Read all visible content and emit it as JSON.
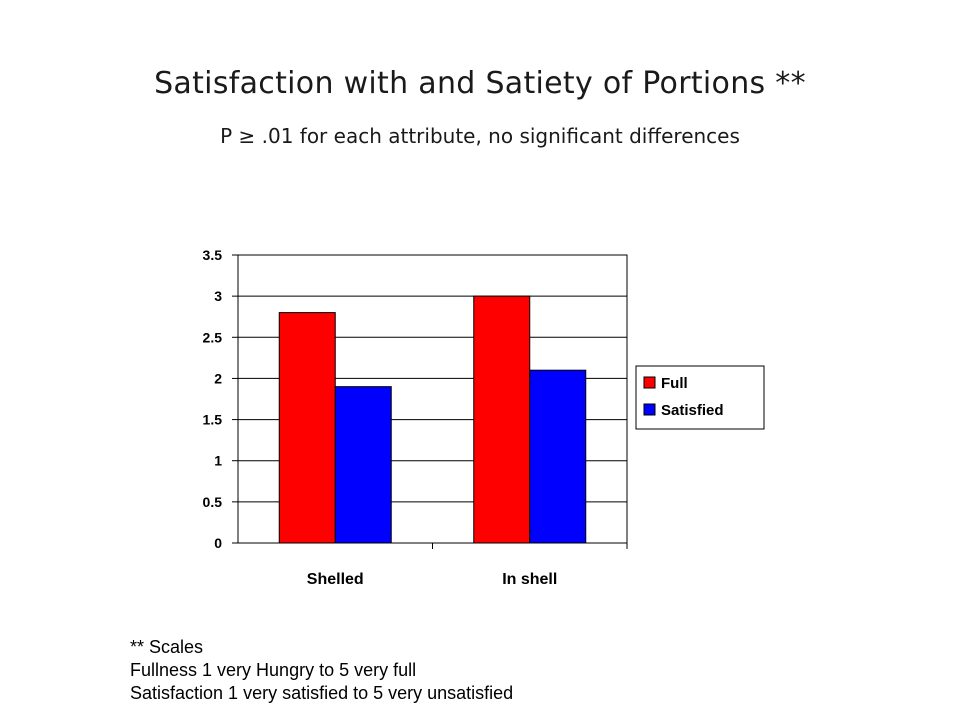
{
  "header": {
    "title": "Satisfaction with and Satiety of Portions **",
    "subtitle": "P ≥ .01 for each attribute, no significant differences"
  },
  "chart_data": {
    "type": "bar",
    "categories": [
      "Shelled",
      "In shell"
    ],
    "series": [
      {
        "name": "Full",
        "values": [
          2.8,
          3.0
        ],
        "color": "#ff0000"
      },
      {
        "name": "Satisfied",
        "values": [
          1.9,
          2.1
        ],
        "color": "#0000ff"
      }
    ],
    "y_ticks": [
      "0",
      "0.5",
      "1",
      "1.5",
      "2",
      "2.5",
      "3",
      "3.5"
    ],
    "ylim": [
      0,
      3.5
    ],
    "grid": true,
    "legend": "right"
  },
  "notes": {
    "line1": "** Scales",
    "line2": "Fullness 1 very Hungry to 5 very full",
    "line3": "Satisfaction 1 very satisfied to 5 very unsatisfied"
  }
}
